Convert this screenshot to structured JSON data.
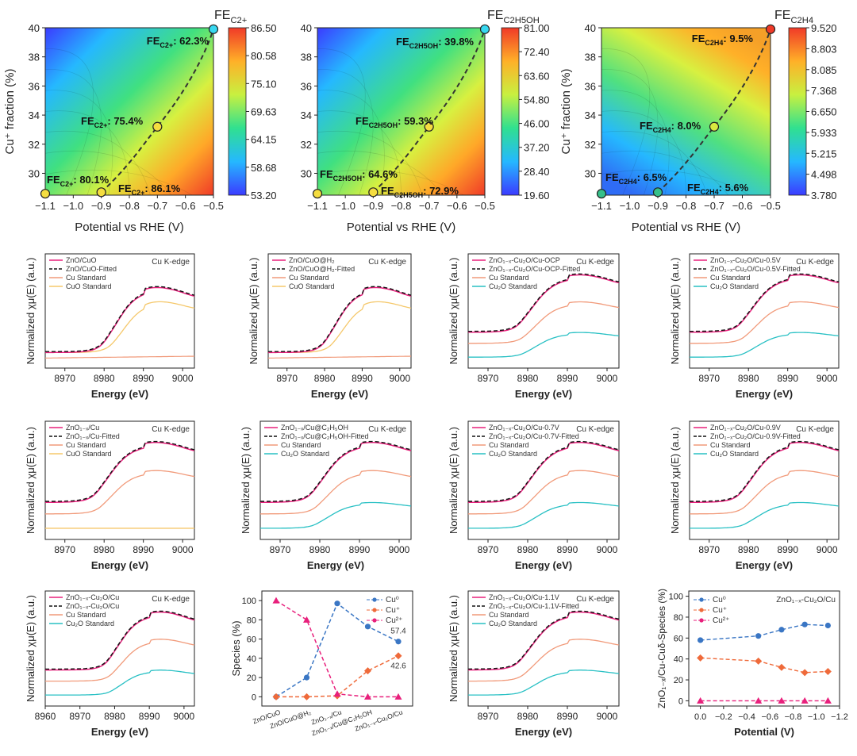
{
  "figure_title": "Cu+ fraction heatmaps and Cu K-edge XANES linear combination fits",
  "colors": {
    "red": "#e8207c",
    "black": "#111111",
    "orange": "#f19a7a",
    "yellow": "#f5c86b",
    "teal": "#28c0c4",
    "cu0": "#3a76c4",
    "cuplus": "#ef6a3a",
    "cu2plus": "#e8207c"
  },
  "chart_data": [
    {
      "type": "heatmap",
      "id": "hm1",
      "colorbar_label": "FE",
      "colorbar_sub": "C2+",
      "xlabel": "Potential vs RHE (V)",
      "ylabel": "Cu⁺ fraction (%)",
      "xlim": [
        -1.1,
        -0.5
      ],
      "ylim": [
        28.5,
        40
      ],
      "xticks": [
        "−1.1",
        "−1.0",
        "−0.9",
        "−0.8",
        "−0.7",
        "−0.6",
        "−0.5"
      ],
      "yticks": [
        "30",
        "32",
        "34",
        "36",
        "38",
        "40"
      ],
      "colorbar_ticks": [
        "86.50",
        "80.58",
        "75.10",
        "69.63",
        "64.15",
        "58.68",
        "53.20"
      ],
      "points": [
        {
          "x": -1.1,
          "y": 28.6
        },
        {
          "x": -0.9,
          "y": 28.7
        },
        {
          "x": -0.7,
          "y": 33.2
        },
        {
          "x": -0.5,
          "y": 39.9
        }
      ],
      "annotations": [
        {
          "label": "FE",
          "sub": "C2+",
          "value": ": 62.3%"
        },
        {
          "label": "FE",
          "sub": "C2+",
          "value": ": 75.4%"
        },
        {
          "label": "FE",
          "sub": "C2+",
          "value": ": 80.1%"
        },
        {
          "label": "FE",
          "sub": "C2+",
          "value": ": 86.1%"
        }
      ]
    },
    {
      "type": "heatmap",
      "id": "hm2",
      "colorbar_label": "FE",
      "colorbar_sub": "C2H5OH",
      "xlabel": "Potential vs RHE (V)",
      "ylabel": "",
      "xlim": [
        -1.1,
        -0.5
      ],
      "ylim": [
        28.5,
        40
      ],
      "xticks": [
        "−1.1",
        "−1.0",
        "−0.9",
        "−0.8",
        "−0.7",
        "−0.6",
        "−0.5"
      ],
      "yticks": [
        "30",
        "32",
        "34",
        "36",
        "38",
        "40"
      ],
      "colorbar_ticks": [
        "81.00",
        "72.40",
        "63.60",
        "54.80",
        "46.00",
        "37.20",
        "28.40",
        "19.60"
      ],
      "points": [
        {
          "x": -1.1,
          "y": 28.6
        },
        {
          "x": -0.9,
          "y": 28.7
        },
        {
          "x": -0.7,
          "y": 33.2
        },
        {
          "x": -0.5,
          "y": 39.9
        }
      ],
      "annotations": [
        {
          "label": "FE",
          "sub": "C2H5OH",
          "value": ": 39.8%"
        },
        {
          "label": "FE",
          "sub": "C2H5OH",
          "value": ": 59.3%"
        },
        {
          "label": "FE",
          "sub": "C2H5OH",
          "value": ": 64.6%"
        },
        {
          "label": "FE",
          "sub": "C2H5OH",
          "value": ": 72.9%"
        }
      ]
    },
    {
      "type": "heatmap",
      "id": "hm3",
      "colorbar_label": "FE",
      "colorbar_sub": "C2H4",
      "xlabel": "Potential vs RHE (V)",
      "ylabel": "Cu⁺ fraction (%)",
      "xlim": [
        -1.1,
        -0.5
      ],
      "ylim": [
        28.5,
        40
      ],
      "xticks": [
        "−1.1",
        "−1.0",
        "−0.9",
        "−0.8",
        "−0.7",
        "−0.6",
        "−0.5"
      ],
      "yticks": [
        "30",
        "32",
        "34",
        "36",
        "38",
        "40"
      ],
      "colorbar_ticks": [
        "9.520",
        "8.803",
        "8.085",
        "7.368",
        "6.650",
        "5.933",
        "5.215",
        "4.498",
        "3.780"
      ],
      "points": [
        {
          "x": -1.1,
          "y": 28.6
        },
        {
          "x": -0.9,
          "y": 28.7
        },
        {
          "x": -0.7,
          "y": 33.2
        },
        {
          "x": -0.5,
          "y": 39.9
        }
      ],
      "annotations": [
        {
          "label": "FE",
          "sub": "C2H4",
          "value": ": 9.5%"
        },
        {
          "label": "FE",
          "sub": "C2H4",
          "value": ": 8.0%"
        },
        {
          "label": "FE",
          "sub": "C2H4",
          "value": ": 6.5%"
        },
        {
          "label": "FE",
          "sub": "C2H4",
          "value": ": 5.6%"
        }
      ]
    },
    {
      "type": "line",
      "id": "x1",
      "xlabel": "Energy (eV)",
      "ylabel": "Normalized χμ(E) (a.u.)",
      "edge": "Cu K-edge",
      "xticks": [
        "8970",
        "8980",
        "8990",
        "9000"
      ],
      "legend": [
        "ZnO/CuO",
        "ZnO/CuO-Fitted",
        "Cu Standard",
        "CuO Standard"
      ],
      "ref": "CuO"
    },
    {
      "type": "line",
      "id": "x2",
      "xlabel": "Energy (eV)",
      "ylabel": "Normalized χμ(E) (a.u.)",
      "edge": "Cu K-edge",
      "xticks": [
        "8970",
        "8980",
        "8990",
        "9000"
      ],
      "legend": [
        "ZnO/CuO@H₂",
        "ZnO/CuO@H₂-Fitted",
        "Cu Standard",
        "CuO Standard"
      ],
      "ref": "CuO"
    },
    {
      "type": "line",
      "id": "x3",
      "xlabel": "Energy (eV)",
      "ylabel": "Normalized χμ(E) (a.u.)",
      "edge": "Cu K-edge",
      "xticks": [
        "8970",
        "8980",
        "8990",
        "9000"
      ],
      "legend": [
        "ZnO₁₋ₓ-Cu₂O/Cu-OCP",
        "ZnO₁₋ₓ-Cu₂O/Cu-OCP-Fitted",
        "Cu Standard",
        "Cu₂O Standard"
      ],
      "ref": "Cu2O"
    },
    {
      "type": "line",
      "id": "x4",
      "xlabel": "Energy (eV)",
      "ylabel": "Normalized χμ(E) (a.u.)",
      "edge": "Cu K-edge",
      "xticks": [
        "8970",
        "8980",
        "8990",
        "9000"
      ],
      "legend": [
        "ZnO₁₋ₓ-Cu₂O/Cu-0.5V",
        "ZnO₁₋ₓ-Cu₂O/Cu-0.5V-Fitted",
        "Cu Standard",
        "Cu₂O Standard"
      ],
      "ref": "Cu2O"
    },
    {
      "type": "line",
      "id": "x5",
      "xlabel": "Energy (eV)",
      "ylabel": "Normalized χμ(E) (a.u.)",
      "edge": "Cu K-edge",
      "xticks": [
        "8970",
        "8980",
        "8990",
        "9000"
      ],
      "legend": [
        "ZnO₁₋ₓ/Cu",
        "ZnO₁₋ₓ/Cu-Fitted",
        "Cu Standard",
        "CuO Standard"
      ],
      "ref": "CuOflat"
    },
    {
      "type": "line",
      "id": "x6",
      "xlabel": "Energy (eV)",
      "ylabel": "Normalized χμ(E) (a.u.)",
      "edge": "Cu K-edge",
      "xticks": [
        "8970",
        "8980",
        "8990",
        "9000"
      ],
      "legend": [
        "ZnO₁₋ₓ/Cu@C₂H₅OH",
        "ZnO₁₋ₓ/Cu@C₂H₅OH-Fitted",
        "Cu Standard",
        "Cu₂O Standard"
      ],
      "ref": "Cu2O"
    },
    {
      "type": "line",
      "id": "x7",
      "xlabel": "Energy (eV)",
      "ylabel": "Normalized χμ(E) (a.u.)",
      "edge": "Cu K-edge",
      "xticks": [
        "8970",
        "8980",
        "8990",
        "9000"
      ],
      "legend": [
        "ZnO₁₋ₓ-Cu₂O/Cu-0.7V",
        "ZnO₁₋ₓ-Cu₂O/Cu-0.7V-Fitted",
        "Cu Standard",
        "Cu₂O Standard"
      ],
      "ref": "Cu2O"
    },
    {
      "type": "line",
      "id": "x8",
      "xlabel": "Energy (eV)",
      "ylabel": "Normalized χμ(E) (a.u.)",
      "edge": "Cu K-edge",
      "xticks": [
        "8970",
        "8980",
        "8990",
        "9000"
      ],
      "legend": [
        "ZnO₁₋ₓ-Cu₂O/Cu-0.9V",
        "ZnO₁₋ₓ-Cu₂O/Cu-0.9V-Fitted",
        "Cu Standard",
        "Cu₂O Standard"
      ],
      "ref": "Cu2O"
    },
    {
      "type": "line",
      "id": "x9",
      "xlabel": "Energy (eV)",
      "ylabel": "Normalized χμ(E) (a.u.)",
      "edge": "Cu K-edge",
      "xticks": [
        "8960",
        "8970",
        "8980",
        "8990",
        "9000"
      ],
      "legend": [
        "ZnO₁₋ₓ-Cu₂O/Cu",
        "ZnO₁₋ₓ-Cu₂O/Cu",
        "Cu Standard",
        "Cu₂O Standard"
      ],
      "ref": "Cu2O"
    },
    {
      "type": "line",
      "id": "sp",
      "xlabel": "",
      "ylabel": "Species (%)",
      "ylim": [
        0,
        100
      ],
      "categories": [
        "ZnO/CuO",
        "ZnO/CuO@H₂",
        "ZnO₁₋ₓ/Cu",
        "ZnO₁₋ₓ/Cu@C₂H₅OH",
        "ZnO₁₋ₓ-Cu₂O/Cu"
      ],
      "yticks": [
        "0",
        "20",
        "40",
        "60",
        "80",
        "100"
      ],
      "series": [
        {
          "name": "Cu⁰",
          "values": [
            0,
            20,
            97,
            73,
            57.4
          ]
        },
        {
          "name": "Cu⁺",
          "values": [
            0,
            0,
            1,
            27,
            42.6
          ]
        },
        {
          "name": "Cu²⁺",
          "values": [
            100,
            80,
            3,
            0,
            0
          ]
        }
      ],
      "labels": [
        "57.4",
        "42.6"
      ]
    },
    {
      "type": "line",
      "id": "x11",
      "xlabel": "Energy (eV)",
      "ylabel": "Normalized χμ(E) (a.u.)",
      "edge": "Cu K-edge",
      "xticks": [
        "8970",
        "8980",
        "8990",
        "9000"
      ],
      "legend": [
        "ZnO₁₋ₓ-Cu₂O/Cu-1.1V",
        "ZnO₁₋ₓ-Cu₂O/Cu-1.1V-Fitted",
        "Cu Standard",
        "Cu₂O Standard"
      ],
      "ref": "Cu2O"
    },
    {
      "type": "scatter",
      "id": "pot",
      "xlabel": "Potential (V)",
      "ylabel": "ZnO₁₋ₓ/Cu-Cuδ-Species (%)",
      "title": "ZnO₁₋ₓ-Cu₂O/Cu",
      "x": [
        0,
        -0.5,
        -0.7,
        -0.9,
        -1.1
      ],
      "xlim": [
        0.1,
        -1.2
      ],
      "ylim": [
        -5,
        105
      ],
      "xticks": [
        "0.0",
        "−0.2",
        "−0.4",
        "−0.6",
        "−0.8",
        "−1.0",
        "−1.2"
      ],
      "yticks": [
        "0",
        "20",
        "40",
        "60",
        "80",
        "100"
      ],
      "series": [
        {
          "name": "Cu⁰",
          "values": [
            58,
            62,
            68,
            73,
            72
          ]
        },
        {
          "name": "Cu⁺",
          "values": [
            41,
            38,
            32,
            27,
            28
          ]
        },
        {
          "name": "Cu²⁺",
          "values": [
            0,
            0,
            0,
            0,
            0
          ]
        }
      ]
    }
  ]
}
